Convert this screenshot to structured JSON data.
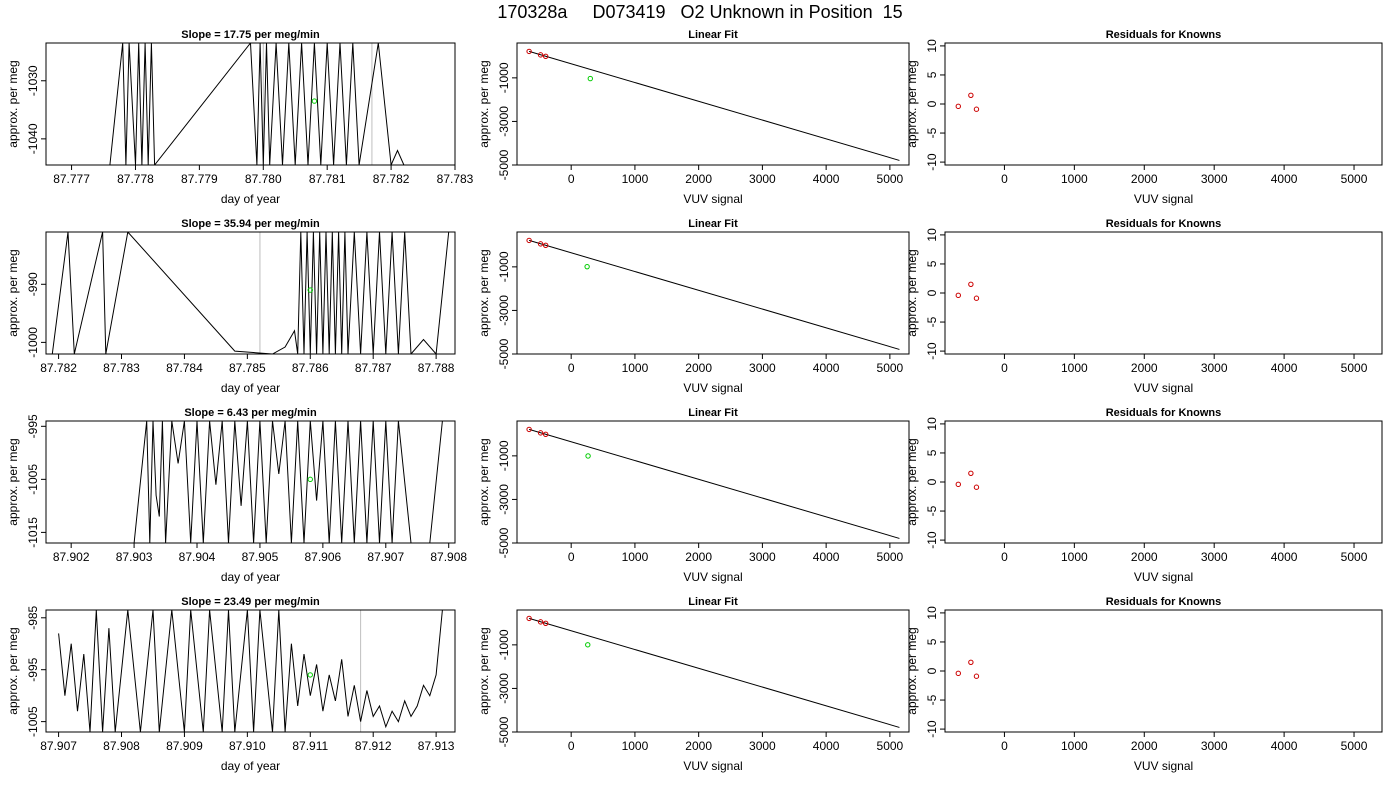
{
  "page": {
    "title": "170328a     D073419   O2 Unknown in Position  15"
  },
  "chart_data": [
    {
      "type": "line",
      "panel": "time-series",
      "title": "Slope =  17.75  per meg/min",
      "xlabel": "day of year",
      "ylabel": "approx. per meg",
      "xlim": [
        87.7766,
        87.783
      ],
      "ylim": [
        -1044.5,
        -1023.5
      ],
      "xticks": [
        "87.777",
        "87.778",
        "87.779",
        "87.780",
        "87.781",
        "87.782",
        "87.783"
      ],
      "yticks": [
        "-1030",
        "-1040"
      ],
      "series": [
        {
          "x": [
            87.7772,
            87.7776,
            87.7778,
            87.77785,
            87.7779,
            87.778,
            87.77805,
            87.7781,
            87.77815,
            87.7782,
            87.77825,
            87.7783,
            87.7798,
            87.7799,
            87.77995,
            87.78,
            87.78005,
            87.7801,
            87.7802,
            87.7803,
            87.7804,
            87.7805,
            87.7806,
            87.7807,
            87.7808,
            87.7809,
            87.781,
            87.7811,
            87.7812,
            87.7813,
            87.7814,
            87.7815,
            87.7818,
            87.782,
            87.7821,
            87.7822
          ],
          "y": [
            -1044.5,
            -1044.5,
            -1023.5,
            -1044.5,
            -1023.5,
            -1044.5,
            -1023.5,
            -1044.5,
            -1023.5,
            -1044.5,
            -1023.5,
            -1044.5,
            -1023.5,
            -1044.5,
            -1023.5,
            -1044.5,
            -1023.5,
            -1044.5,
            -1023.5,
            -1044.5,
            -1023.5,
            -1044.5,
            -1023.5,
            -1044.5,
            -1023.5,
            -1044.5,
            -1023.5,
            -1044.5,
            -1023.5,
            -1044.5,
            -1023.5,
            -1044.5,
            -1023.5,
            -1044.5,
            -1042.0,
            -1044.5
          ]
        }
      ],
      "marker": {
        "x": 87.7808,
        "y": -1033.5
      },
      "vlines": [
        87.78,
        87.7817
      ]
    },
    {
      "type": "scatter",
      "panel": "linear-fit",
      "title": "Linear Fit",
      "xlabel": "VUV signal",
      "ylabel": "approx. per meg",
      "xlim": [
        -850,
        5300
      ],
      "ylim": [
        -5000,
        600
      ],
      "xticks": [
        "0",
        "1000",
        "2000",
        "3000",
        "4000",
        "5000"
      ],
      "yticks": [
        "-1000",
        "-3000",
        "-5000"
      ],
      "knowns": [
        {
          "x": -660,
          "y": 215
        },
        {
          "x": -480,
          "y": 55
        },
        {
          "x": -400,
          "y": -10
        }
      ],
      "unknown": {
        "x": 300,
        "y": -1033
      },
      "fit_line": [
        {
          "x": -660,
          "y": 215
        },
        {
          "x": 5150,
          "y": -4790
        }
      ]
    },
    {
      "type": "scatter",
      "panel": "residuals",
      "title": "Residuals for Knowns",
      "xlabel": "VUV signal",
      "ylabel": "approx. per meg",
      "xlim": [
        -850,
        5400
      ],
      "ylim": [
        -10.5,
        10.5
      ],
      "xticks": [
        "0",
        "1000",
        "2000",
        "3000",
        "4000",
        "5000"
      ],
      "yticks": [
        "-10",
        "-5",
        "0",
        "5",
        "10"
      ],
      "points": [
        {
          "x": -660,
          "y": -0.4
        },
        {
          "x": -480,
          "y": 1.5
        },
        {
          "x": -400,
          "y": -0.9
        }
      ]
    },
    {
      "type": "line",
      "panel": "time-series",
      "title": "Slope =  35.94  per meg/min",
      "xlabel": "day of year",
      "ylabel": "approx. per meg",
      "xlim": [
        87.7818,
        87.7883
      ],
      "ylim": [
        -1002.0,
        -981.0
      ],
      "xticks": [
        "87.782",
        "87.783",
        "87.784",
        "87.785",
        "87.786",
        "87.787",
        "87.788"
      ],
      "yticks": [
        "-990",
        "-1000"
      ],
      "series": [
        {
          "x": [
            87.7819,
            87.78215,
            87.78225,
            87.7827,
            87.78275,
            87.7831,
            87.7848,
            87.7854,
            87.7856,
            87.78575,
            87.7858,
            87.78585,
            87.7859,
            87.78595,
            87.786,
            87.78605,
            87.7861,
            87.78615,
            87.7862,
            87.78625,
            87.7863,
            87.78635,
            87.7864,
            87.78645,
            87.7865,
            87.78655,
            87.7866,
            87.7867,
            87.7868,
            87.7869,
            87.787,
            87.7871,
            87.7872,
            87.7873,
            87.7874,
            87.7875,
            87.7876,
            87.7878,
            87.788,
            87.7882
          ],
          "y": [
            -1002.0,
            -981.0,
            -1002.0,
            -981.0,
            -1002.0,
            -981.0,
            -1001.5,
            -1002.0,
            -1000.8,
            -998.0,
            -1002.0,
            -981.0,
            -1002.0,
            -981.0,
            -1002.0,
            -981.0,
            -1002.0,
            -981.0,
            -1002.0,
            -981.0,
            -1002.0,
            -981.0,
            -1002.0,
            -981.0,
            -1002.0,
            -981.0,
            -1002.0,
            -981.0,
            -1002.0,
            -981.0,
            -1002.0,
            -981.0,
            -1002.0,
            -981.0,
            -1002.0,
            -981.0,
            -1002.0,
            -999.5,
            -1002.0,
            -981.0
          ]
        }
      ],
      "marker": {
        "x": 87.786,
        "y": -991.0
      },
      "vlines": [
        87.7852
      ]
    },
    {
      "type": "scatter",
      "panel": "linear-fit",
      "title": "Linear Fit",
      "xlabel": "VUV signal",
      "ylabel": "approx. per meg",
      "xlim": [
        -850,
        5300
      ],
      "ylim": [
        -5000,
        600
      ],
      "xticks": [
        "0",
        "1000",
        "2000",
        "3000",
        "4000",
        "5000"
      ],
      "yticks": [
        "-1000",
        "-3000",
        "-5000"
      ],
      "knowns": [
        {
          "x": -660,
          "y": 215
        },
        {
          "x": -480,
          "y": 55
        },
        {
          "x": -400,
          "y": -10
        }
      ],
      "unknown": {
        "x": 250,
        "y": -991
      },
      "fit_line": [
        {
          "x": -660,
          "y": 215
        },
        {
          "x": 5150,
          "y": -4790
        }
      ]
    },
    {
      "type": "scatter",
      "panel": "residuals",
      "title": "Residuals for Knowns",
      "xlabel": "VUV signal",
      "ylabel": "approx. per meg",
      "xlim": [
        -850,
        5400
      ],
      "ylim": [
        -10.5,
        10.5
      ],
      "xticks": [
        "0",
        "1000",
        "2000",
        "3000",
        "4000",
        "5000"
      ],
      "yticks": [
        "-10",
        "-5",
        "0",
        "5",
        "10"
      ],
      "points": [
        {
          "x": -660,
          "y": -0.4
        },
        {
          "x": -480,
          "y": 1.5
        },
        {
          "x": -400,
          "y": -0.9
        }
      ]
    },
    {
      "type": "line",
      "panel": "time-series",
      "title": "Slope =  6.43  per meg/min",
      "xlabel": "day of year",
      "ylabel": "approx. per meg",
      "xlim": [
        87.9016,
        87.9081
      ],
      "ylim": [
        -1017.0,
        -994.0
      ],
      "xticks": [
        "87.902",
        "87.903",
        "87.904",
        "87.905",
        "87.906",
        "87.907",
        "87.908"
      ],
      "yticks": [
        "-995",
        "-1005",
        "-1015"
      ],
      "series": [
        {
          "x": [
            87.9016,
            87.903,
            87.9032,
            87.90325,
            87.9033,
            87.90335,
            87.9034,
            87.90345,
            87.9035,
            87.9036,
            87.9037,
            87.9038,
            87.9039,
            87.904,
            87.9041,
            87.9042,
            87.9043,
            87.9044,
            87.9045,
            87.9046,
            87.9047,
            87.9048,
            87.9049,
            87.905,
            87.9051,
            87.9052,
            87.9053,
            87.9054,
            87.9055,
            87.9056,
            87.9057,
            87.9058,
            87.9059,
            87.906,
            87.9061,
            87.9062,
            87.9063,
            87.9064,
            87.9065,
            87.9066,
            87.9067,
            87.9068,
            87.9069,
            87.907,
            87.9071,
            87.9072,
            87.9074,
            87.9077,
            87.9079
          ],
          "y": [
            -1017.0,
            -1017.0,
            -994.0,
            -1017.0,
            -994.0,
            -1008.0,
            -1012.0,
            -994.0,
            -1017.0,
            -994.0,
            -1002.0,
            -994.0,
            -1017.0,
            -994.0,
            -1017.0,
            -994.0,
            -1006.0,
            -994.0,
            -1017.0,
            -994.0,
            -1010.0,
            -994.0,
            -1017.0,
            -994.0,
            -1017.0,
            -994.0,
            -1004.0,
            -994.0,
            -1017.0,
            -994.0,
            -1017.0,
            -994.0,
            -1009.0,
            -994.0,
            -1017.0,
            -994.0,
            -1017.0,
            -994.0,
            -1017.0,
            -994.0,
            -1017.0,
            -994.0,
            -1017.0,
            -994.0,
            -1017.0,
            -994.0,
            -1017.0,
            -1017.0,
            -994.0
          ]
        }
      ],
      "marker": {
        "x": 87.9058,
        "y": -1005.0
      },
      "vlines": []
    },
    {
      "type": "scatter",
      "panel": "linear-fit",
      "title": "Linear Fit",
      "xlabel": "VUV signal",
      "ylabel": "approx. per meg",
      "xlim": [
        -850,
        5300
      ],
      "ylim": [
        -5000,
        600
      ],
      "xticks": [
        "0",
        "1000",
        "2000",
        "3000",
        "4000",
        "5000"
      ],
      "yticks": [
        "-1000",
        "-3000",
        "-5000"
      ],
      "knowns": [
        {
          "x": -660,
          "y": 215
        },
        {
          "x": -480,
          "y": 55
        },
        {
          "x": -400,
          "y": -10
        }
      ],
      "unknown": {
        "x": 265,
        "y": -1005
      },
      "fit_line": [
        {
          "x": -660,
          "y": 215
        },
        {
          "x": 5150,
          "y": -4790
        }
      ]
    },
    {
      "type": "scatter",
      "panel": "residuals",
      "title": "Residuals for Knowns",
      "xlabel": "VUV signal",
      "ylabel": "approx. per meg",
      "xlim": [
        -850,
        5400
      ],
      "ylim": [
        -10.5,
        10.5
      ],
      "xticks": [
        "0",
        "1000",
        "2000",
        "3000",
        "4000",
        "5000"
      ],
      "yticks": [
        "-10",
        "-5",
        "0",
        "5",
        "10"
      ],
      "points": [
        {
          "x": -660,
          "y": -0.4
        },
        {
          "x": -480,
          "y": 1.5
        },
        {
          "x": -400,
          "y": -0.9
        }
      ]
    },
    {
      "type": "line",
      "panel": "time-series",
      "title": "Slope =  23.49  per meg/min",
      "xlabel": "day of year",
      "ylabel": "approx. per meg",
      "xlim": [
        87.9068,
        87.9133
      ],
      "ylim": [
        -1007.0,
        -983.5
      ],
      "xticks": [
        "87.907",
        "87.908",
        "87.909",
        "87.910",
        "87.911",
        "87.912",
        "87.913"
      ],
      "yticks": [
        "-985",
        "-995",
        "-1005"
      ],
      "series": [
        {
          "x": [
            87.907,
            87.9071,
            87.9072,
            87.9073,
            87.9074,
            87.9075,
            87.9076,
            87.9077,
            87.9078,
            87.9079,
            87.9081,
            87.9083,
            87.9085,
            87.9086,
            87.9088,
            87.909,
            87.9091,
            87.9093,
            87.9094,
            87.9096,
            87.9097,
            87.9098,
            87.91,
            87.9101,
            87.9102,
            87.9104,
            87.9105,
            87.9106,
            87.9107,
            87.9108,
            87.9109,
            87.911,
            87.9111,
            87.9112,
            87.9113,
            87.9114,
            87.9115,
            87.9116,
            87.9117,
            87.9118,
            87.9119,
            87.912,
            87.9121,
            87.9122,
            87.9123,
            87.9124,
            87.9125,
            87.9126,
            87.9127,
            87.9128,
            87.9129,
            87.913,
            87.9131
          ],
          "y": [
            -988.0,
            -1000.0,
            -990.0,
            -1003.0,
            -992.0,
            -1007.0,
            -983.5,
            -1007.0,
            -987.0,
            -1007.0,
            -983.5,
            -1007.0,
            -983.5,
            -1007.0,
            -983.5,
            -1007.0,
            -983.5,
            -1007.0,
            -983.5,
            -1007.0,
            -983.5,
            -1007.0,
            -983.5,
            -1007.0,
            -983.5,
            -1007.0,
            -983.5,
            -1007.0,
            -990.0,
            -1002.0,
            -992.0,
            -1000.0,
            -994.0,
            -1003.0,
            -996.0,
            -1001.0,
            -993.0,
            -1004.0,
            -998.0,
            -1005.0,
            -999.0,
            -1004.0,
            -1002.0,
            -1006.0,
            -1003.0,
            -1005.0,
            -1001.0,
            -1004.0,
            -1002.0,
            -998.0,
            -1000.0,
            -996.0,
            -983.5
          ]
        }
      ],
      "marker": {
        "x": 87.911,
        "y": -996.0
      },
      "vlines": [
        87.9118
      ]
    },
    {
      "type": "scatter",
      "panel": "linear-fit",
      "title": "Linear Fit",
      "xlabel": "VUV signal",
      "ylabel": "approx. per meg",
      "xlim": [
        -850,
        5300
      ],
      "ylim": [
        -5000,
        600
      ],
      "xticks": [
        "0",
        "1000",
        "2000",
        "3000",
        "4000",
        "5000"
      ],
      "yticks": [
        "-1000",
        "-3000",
        "-5000"
      ],
      "knowns": [
        {
          "x": -660,
          "y": 215
        },
        {
          "x": -480,
          "y": 55
        },
        {
          "x": -400,
          "y": -10
        }
      ],
      "unknown": {
        "x": 260,
        "y": -996
      },
      "fit_line": [
        {
          "x": -660,
          "y": 215
        },
        {
          "x": 5150,
          "y": -4790
        }
      ]
    },
    {
      "type": "scatter",
      "panel": "residuals",
      "title": "Residuals for Knowns",
      "xlabel": "VUV signal",
      "ylabel": "approx. per meg",
      "xlim": [
        -850,
        5400
      ],
      "ylim": [
        -10.5,
        10.5
      ],
      "xticks": [
        "0",
        "1000",
        "2000",
        "3000",
        "4000",
        "5000"
      ],
      "yticks": [
        "-10",
        "-5",
        "0",
        "5",
        "10"
      ],
      "points": [
        {
          "x": -660,
          "y": -0.4
        },
        {
          "x": -480,
          "y": 1.5
        },
        {
          "x": -400,
          "y": -0.9
        }
      ]
    }
  ]
}
